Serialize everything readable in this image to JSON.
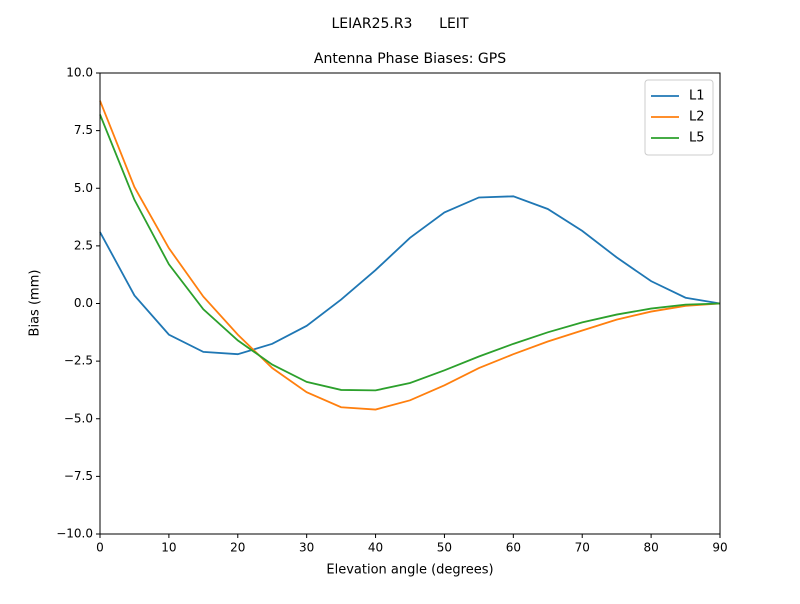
{
  "chart_data": {
    "type": "line",
    "suptitle": "LEIAR25.R3      LEIT",
    "title": "Antenna Phase Biases: GPS",
    "xlabel": "Elevation angle (degrees)",
    "ylabel": "Bias (mm)",
    "x": [
      0,
      5,
      10,
      15,
      20,
      25,
      30,
      35,
      40,
      45,
      50,
      55,
      60,
      65,
      70,
      75,
      80,
      85,
      90
    ],
    "series": [
      {
        "name": "L1",
        "color": "#1f77b4",
        "values": [
          3.1,
          0.35,
          -1.35,
          -2.1,
          -2.2,
          -1.75,
          -0.97,
          0.17,
          1.45,
          2.85,
          3.95,
          4.6,
          4.65,
          4.1,
          3.15,
          2.0,
          0.97,
          0.25,
          0
        ]
      },
      {
        "name": "L2",
        "color": "#ff7f0e",
        "values": [
          8.8,
          5.05,
          2.4,
          0.3,
          -1.35,
          -2.8,
          -3.85,
          -4.5,
          -4.6,
          -4.2,
          -3.55,
          -2.8,
          -2.2,
          -1.65,
          -1.17,
          -0.7,
          -0.35,
          -0.1,
          0
        ]
      },
      {
        "name": "L5",
        "color": "#2ca02c",
        "values": [
          8.2,
          4.5,
          1.7,
          -0.25,
          -1.6,
          -2.65,
          -3.4,
          -3.75,
          -3.77,
          -3.45,
          -2.9,
          -2.3,
          -1.75,
          -1.25,
          -0.82,
          -0.48,
          -0.22,
          -0.05,
          0
        ]
      }
    ],
    "xlim": [
      0,
      90
    ],
    "xticks": [
      0,
      10,
      20,
      30,
      40,
      50,
      60,
      70,
      80,
      90
    ],
    "ylim": [
      -10,
      10
    ],
    "yticks": [
      {
        "value": -10,
        "label": "−10.0"
      },
      {
        "value": -7.5,
        "label": "−7.5"
      },
      {
        "value": -5,
        "label": "−5.0"
      },
      {
        "value": -2.5,
        "label": "−2.5"
      },
      {
        "value": 0,
        "label": "0.0"
      },
      {
        "value": 2.5,
        "label": "2.5"
      },
      {
        "value": 5,
        "label": "5.0"
      },
      {
        "value": 7.5,
        "label": "7.5"
      },
      {
        "value": 10,
        "label": "10.0"
      }
    ],
    "legend": "upper right",
    "grid": false
  }
}
